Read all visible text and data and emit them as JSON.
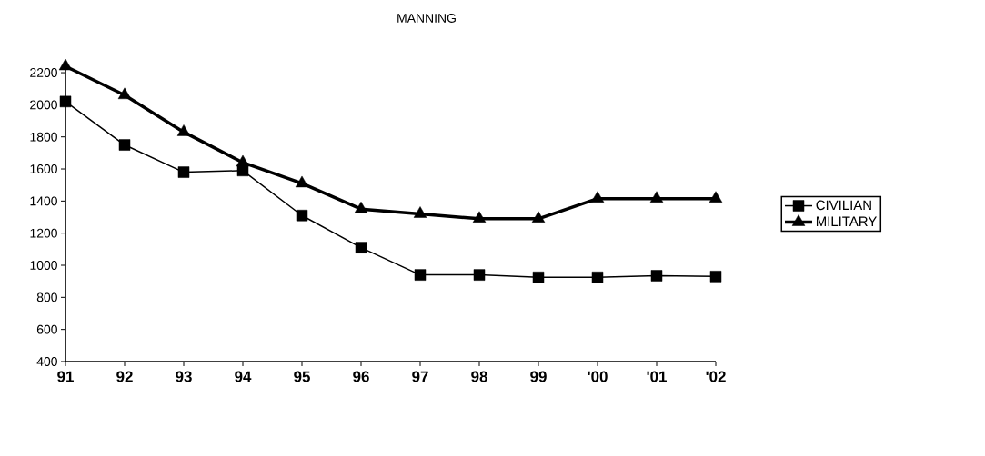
{
  "chart_data": {
    "type": "line",
    "title": "MANNING",
    "categories": [
      "91",
      "92",
      "93",
      "94",
      "95",
      "96",
      "97",
      "98",
      "99",
      "'00",
      "'01",
      "'02"
    ],
    "series": [
      {
        "name": "CIVILIAN",
        "color": "#000000",
        "marker": "square",
        "values": [
          2020,
          1750,
          1580,
          1590,
          1310,
          1110,
          940,
          940,
          925,
          925,
          935,
          930
        ]
      },
      {
        "name": "MILITARY",
        "color": "#000000",
        "marker": "triangle",
        "values": [
          2240,
          2060,
          1830,
          1640,
          1510,
          1350,
          1320,
          1290,
          1290,
          1415,
          1415,
          1415
        ]
      }
    ],
    "ylim": [
      400,
      2240
    ],
    "yticks": [
      400,
      600,
      800,
      1000,
      1200,
      1400,
      1600,
      1800,
      2000,
      2200
    ],
    "grid": false,
    "legend": "right"
  }
}
